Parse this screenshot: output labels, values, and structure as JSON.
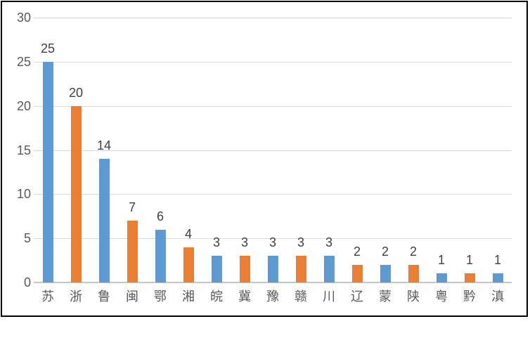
{
  "chart_data": {
    "type": "bar",
    "title": "",
    "xlabel": "",
    "ylabel": "",
    "categories": [
      "苏",
      "浙",
      "鲁",
      "闽",
      "鄂",
      "湘",
      "皖",
      "冀",
      "豫",
      "赣",
      "川",
      "辽",
      "蒙",
      "陕",
      "粤",
      "黔",
      "滇"
    ],
    "values": [
      25,
      20,
      14,
      7,
      6,
      4,
      3,
      3,
      3,
      3,
      3,
      2,
      2,
      2,
      1,
      1,
      1
    ],
    "data_labels_shown": true,
    "color_pattern_alternating": [
      "#5B9BD5",
      "#ED7D31"
    ],
    "ylim": [
      0,
      30
    ],
    "yticks": [
      0,
      5,
      10,
      15,
      20,
      25,
      30
    ],
    "grid": true,
    "legend": "none"
  },
  "colors": {
    "bar_blue": "#5B9BD5",
    "bar_orange": "#ED7D31",
    "gridline": "#D9D9D9",
    "axis_line": "#C6C6C6",
    "axis_label_text": "#595959",
    "data_label_text": "#404040",
    "frame_border": "#000000",
    "background": "#FFFFFF"
  }
}
